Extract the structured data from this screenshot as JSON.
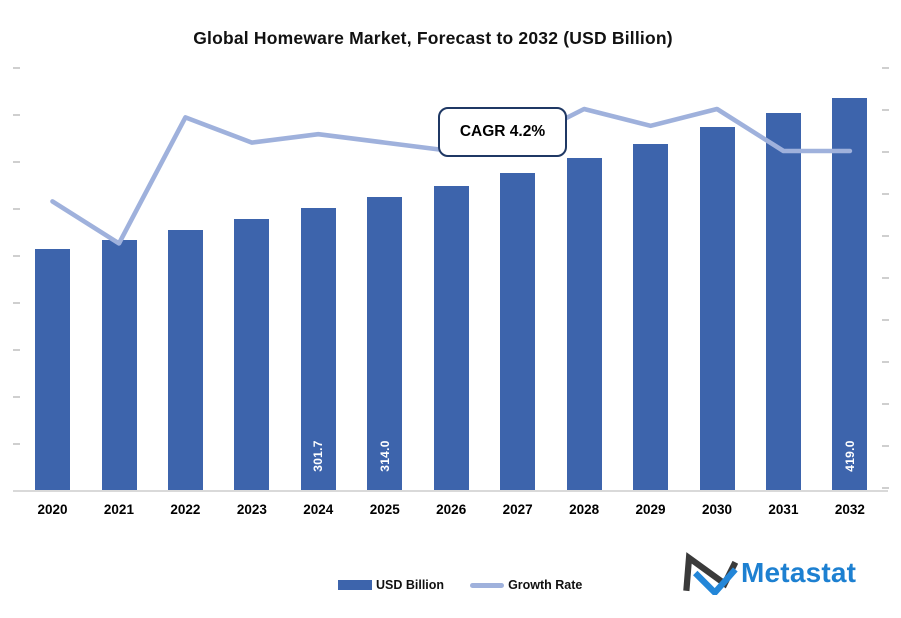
{
  "title": "Global Homeware Market, Forecast to 2032 (USD Billion)",
  "annotation": {
    "cagr_label": "CAGR 4.2%"
  },
  "legend": {
    "bar_label": "USD Billion",
    "line_label": "Growth Rate"
  },
  "logo": {
    "text": "Metastat"
  },
  "colors": {
    "bar": "#3D64AC",
    "line": "#9FB1DC",
    "cagr_border": "#1F3864",
    "axis_line": "#D9D9D9",
    "tick": "#CFCFCF",
    "bar_value_label": "#FFFFFF",
    "logo_dark": "#3A3A3A",
    "logo_blue": "#2386D8",
    "logo_text": "#1D80D1"
  },
  "chart_data": {
    "type": "bar",
    "title": "Global Homeware Market, Forecast to 2032 (USD Billion)",
    "categories": [
      "2020",
      "2021",
      "2022",
      "2023",
      "2024",
      "2025",
      "2026",
      "2027",
      "2028",
      "2029",
      "2030",
      "2031",
      "2032"
    ],
    "series": [
      {
        "name": "USD Billion",
        "type": "bar",
        "values": [
          258,
          268,
          278,
          290,
          301.7,
          314.0,
          325,
          339,
          355,
          370,
          388,
          403,
          419.0
        ],
        "shown_value_labels": [
          "",
          "",
          "",
          "",
          "301.7",
          "314.0",
          "",
          "",
          "",
          "",
          "",
          "",
          "419.0"
        ]
      },
      {
        "name": "Growth Rate",
        "type": "line",
        "unit": "%",
        "values": [
          3.4,
          2.9,
          4.4,
          4.1,
          4.2,
          4.1,
          4.0,
          4.1,
          4.5,
          4.3,
          4.5,
          4.0,
          4.0
        ]
      }
    ],
    "annotations": [
      "CAGR 4.2%"
    ],
    "xlabel": "",
    "ylabel": "",
    "left_axis": {
      "min": 0,
      "max": 450,
      "tick_step": 50,
      "labels_visible": false
    },
    "right_axis": {
      "min": 0,
      "max": 5,
      "tick_step": 0.5,
      "labels_visible": false
    },
    "legend_position": "bottom",
    "grid": false
  }
}
